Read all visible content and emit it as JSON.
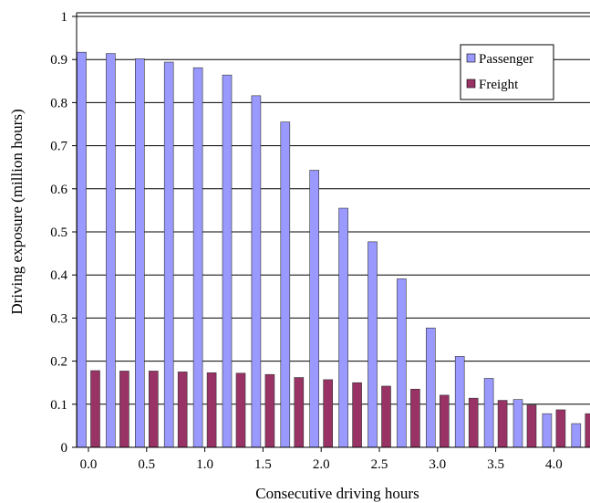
{
  "chart_data": {
    "type": "bar",
    "xlabel": "Consecutive driving hours",
    "ylabel": "Driving exposure (million hours)",
    "ylim": [
      0,
      1
    ],
    "yticks": [
      "0",
      "0.1",
      "0.2",
      "0.3",
      "0.4",
      "0.5",
      "0.6",
      "0.7",
      "0.8",
      "0.9",
      "1"
    ],
    "xticks": [
      "0.0",
      "0.5",
      "1.0",
      "1.5",
      "2.0",
      "2.5",
      "3.0",
      "3.5",
      "4.0"
    ],
    "categories": [
      0.0,
      0.25,
      0.5,
      0.75,
      1.0,
      1.25,
      1.5,
      1.75,
      2.0,
      2.25,
      2.5,
      2.75,
      3.0,
      3.25,
      3.5,
      3.75,
      4.0,
      4.25
    ],
    "grid": true,
    "legend_position": "top-right",
    "series": [
      {
        "name": "Passenger",
        "color": "#9999ff",
        "values": [
          0.917,
          0.914,
          0.902,
          0.894,
          0.881,
          0.864,
          0.816,
          0.755,
          0.643,
          0.555,
          0.477,
          0.391,
          0.277,
          0.211,
          0.16,
          0.111,
          0.078,
          0.055
        ]
      },
      {
        "name": "Freight",
        "color": "#993366",
        "values": [
          0.178,
          0.177,
          0.177,
          0.175,
          0.173,
          0.172,
          0.169,
          0.162,
          0.157,
          0.15,
          0.142,
          0.135,
          0.121,
          0.114,
          0.109,
          0.098,
          0.087,
          0.078
        ]
      }
    ]
  }
}
